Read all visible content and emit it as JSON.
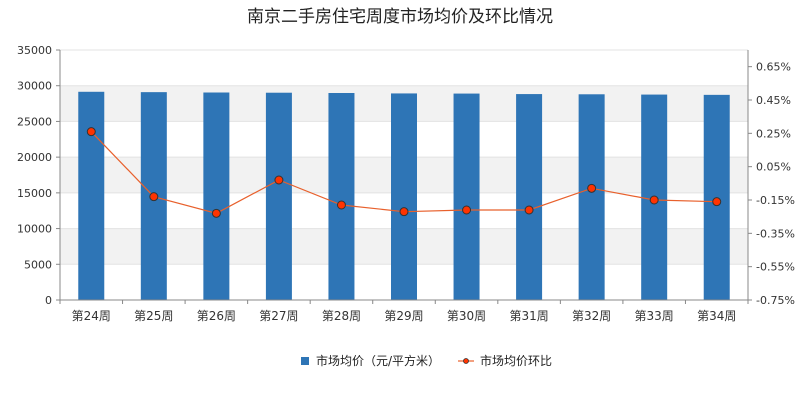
{
  "chart_data": {
    "type": "bar",
    "title": "南京二手房住宅周度市场均价及环比情况",
    "categories": [
      "第24周",
      "第25周",
      "第26周",
      "第27周",
      "第28周",
      "第29周",
      "第30周",
      "第31周",
      "第32周",
      "第33周",
      "第34周"
    ],
    "series": [
      {
        "name": "市场均价（元/平方米）",
        "type": "bar",
        "axis": "left",
        "color": "#2e75b6",
        "values": [
          29150,
          29100,
          29050,
          29020,
          28980,
          28920,
          28900,
          28830,
          28800,
          28760,
          28720
        ]
      },
      {
        "name": "市场均价环比",
        "type": "line",
        "axis": "right",
        "color": "#e8602c",
        "marker_color": "#ff3300",
        "values": [
          0.26,
          -0.13,
          -0.23,
          -0.03,
          -0.18,
          -0.22,
          -0.21,
          -0.21,
          -0.08,
          -0.15,
          -0.16
        ]
      }
    ],
    "left_axis": {
      "ylim": [
        0,
        35000
      ],
      "ticks": [
        0,
        5000,
        10000,
        15000,
        20000,
        25000,
        30000,
        35000
      ],
      "tick_labels": [
        "0",
        "5000",
        "10000",
        "15000",
        "20000",
        "25000",
        "30000",
        "35000"
      ]
    },
    "right_axis": {
      "ylim": [
        -0.75,
        0.75
      ],
      "ticks": [
        -0.75,
        -0.55,
        -0.35,
        -0.15,
        0.05,
        0.25,
        0.45,
        0.65
      ],
      "tick_labels": [
        "-0.75%",
        "-0.55%",
        "-0.35%",
        "-0.15%",
        "0.05%",
        "0.25%",
        "0.45%",
        "0.65%"
      ]
    },
    "grid": "horizontal alternating bands",
    "legend_position": "bottom-center"
  }
}
